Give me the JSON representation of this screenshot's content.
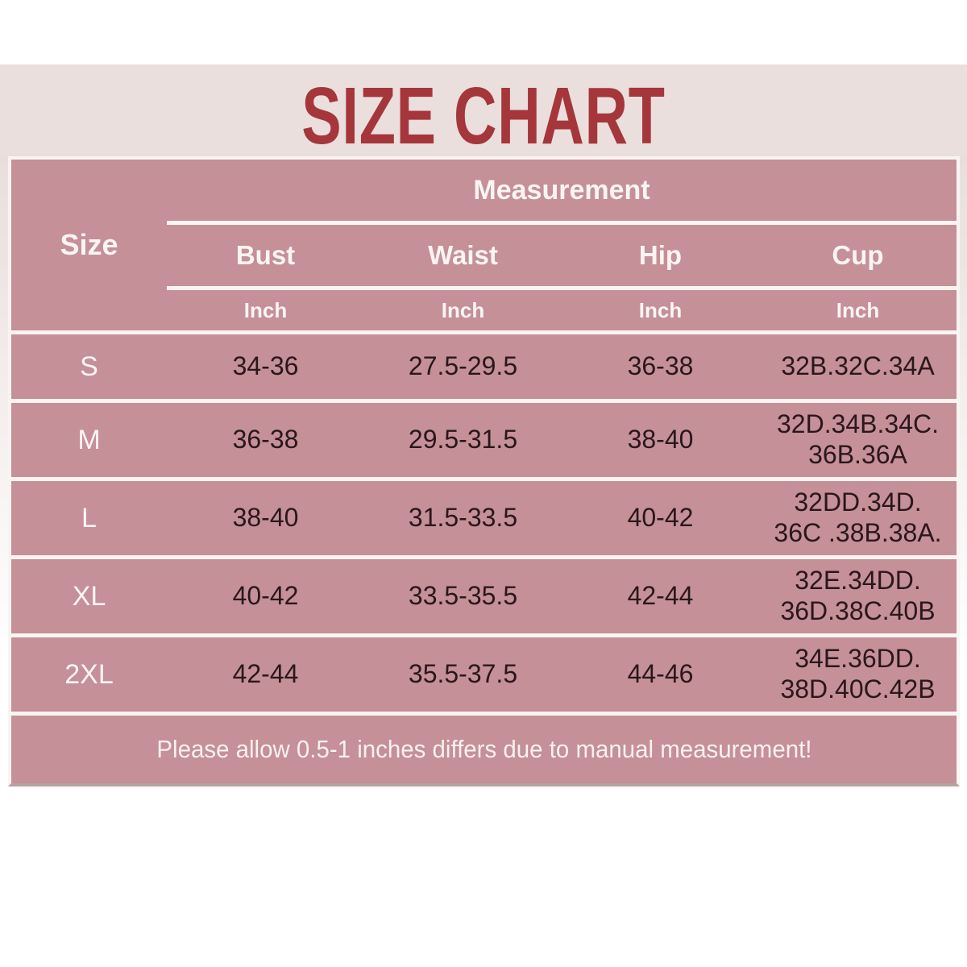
{
  "title": "SIZE CHART",
  "colors": {
    "title_red": "#a5363c",
    "band_cream": "#eadfdc",
    "table_pink": "#c59098",
    "separator_white": "#f8f4f2",
    "header_text": "#faf5f3",
    "value_text": "#2a171b"
  },
  "table": {
    "size_header": "Size",
    "measurement_header": "Measurement",
    "columns": [
      "Bust",
      "Waist",
      "Hip",
      "Cup"
    ],
    "unit_row": [
      "Inch",
      "Inch",
      "Inch",
      "Inch"
    ],
    "rows": [
      {
        "size": "S",
        "bust": "34-36",
        "waist": "27.5-29.5",
        "hip": "36-38",
        "cup": "32B.32C.34A"
      },
      {
        "size": "M",
        "bust": "36-38",
        "waist": "29.5-31.5",
        "hip": "38-40",
        "cup": "32D.34B.34C.\n36B.36A"
      },
      {
        "size": "L",
        "bust": "38-40",
        "waist": "31.5-33.5",
        "hip": "40-42",
        "cup": "32DD.34D.\n36C .38B.38A."
      },
      {
        "size": "XL",
        "bust": "40-42",
        "waist": "33.5-35.5",
        "hip": "42-44",
        "cup": "32E.34DD.\n36D.38C.40B"
      },
      {
        "size": "2XL",
        "bust": "42-44",
        "waist": "35.5-37.5",
        "hip": "44-46",
        "cup": "34E.36DD.\n38D.40C.42B"
      }
    ],
    "note": "Please allow 0.5-1 inches differs due to manual measurement!"
  },
  "chart_data": {
    "type": "table",
    "title": "SIZE CHART",
    "columns": [
      "Size",
      "Bust (Inch)",
      "Waist (Inch)",
      "Hip (Inch)",
      "Cup (Inch)"
    ],
    "rows": [
      [
        "S",
        "34-36",
        "27.5-29.5",
        "36-38",
        "32B.32C.34A"
      ],
      [
        "M",
        "36-38",
        "29.5-31.5",
        "38-40",
        "32D.34B.34C. 36B.36A"
      ],
      [
        "L",
        "38-40",
        "31.5-33.5",
        "40-42",
        "32DD.34D. 36C .38B.38A."
      ],
      [
        "XL",
        "40-42",
        "33.5-35.5",
        "42-44",
        "32E.34DD. 36D.38C.40B"
      ],
      [
        "2XL",
        "42-44",
        "35.5-37.5",
        "44-46",
        "34E.36DD. 38D.40C.42B"
      ]
    ],
    "footnote": "Please allow 0.5-1 inches differs due to manual measurement!"
  }
}
